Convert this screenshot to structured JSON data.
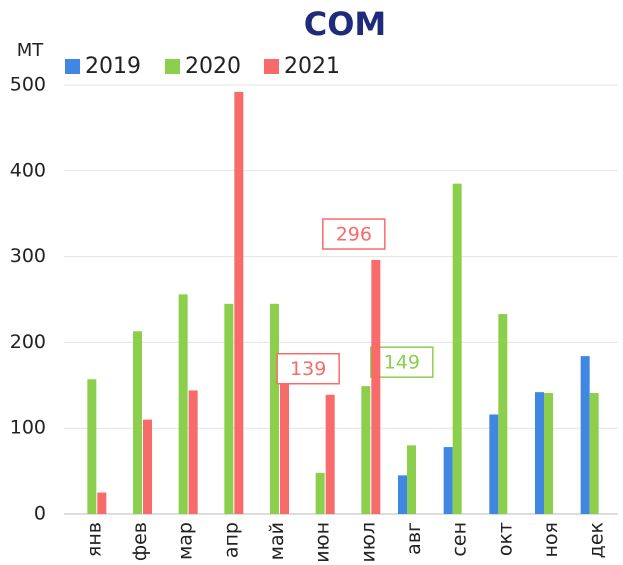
{
  "chart_data": {
    "type": "bar",
    "title": "СОМ",
    "y_label": "МТ",
    "categories": [
      "янв",
      "фев",
      "мар",
      "апр",
      "май",
      "июн",
      "июл",
      "авг",
      "сен",
      "окт",
      "ноя",
      "дек"
    ],
    "series": [
      {
        "name": "2019",
        "color": "#3f87e0",
        "values": [
          null,
          null,
          null,
          null,
          null,
          null,
          null,
          45,
          78,
          116,
          142,
          184
        ]
      },
      {
        "name": "2020",
        "color": "#8ccf4d",
        "values": [
          157,
          213,
          256,
          245,
          245,
          48,
          149,
          80,
          385,
          233,
          141,
          141
        ],
        "value_labels": [
          null,
          null,
          null,
          null,
          null,
          null,
          "149",
          null,
          null,
          null,
          null,
          null
        ]
      },
      {
        "name": "2021",
        "color": "#f76b6b",
        "values": [
          25,
          110,
          144,
          492,
          186,
          139,
          296,
          null,
          null,
          null,
          null,
          null
        ],
        "value_labels": [
          null,
          null,
          null,
          null,
          null,
          "139",
          "296",
          null,
          null,
          null,
          null,
          null
        ]
      }
    ],
    "ylim": [
      0,
      500
    ],
    "yticks": [
      0,
      100,
      200,
      300,
      400,
      500
    ],
    "grid": true,
    "legend": "top"
  }
}
